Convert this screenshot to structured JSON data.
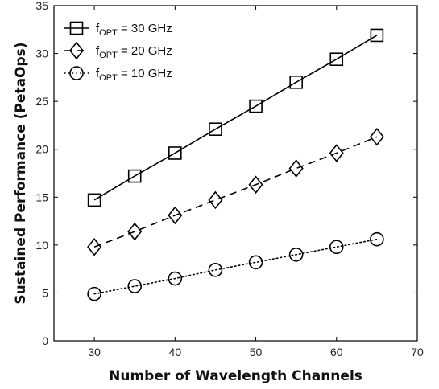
{
  "chart_data": {
    "type": "line",
    "xlabel": "Number of Wavelength Channels",
    "ylabel": "Sustained Performance (PetaOps)",
    "xlim": [
      25,
      70
    ],
    "ylim": [
      0,
      35
    ],
    "xticks": [
      "30",
      "40",
      "50",
      "60",
      "70"
    ],
    "yticks": [
      "0",
      "5",
      "10",
      "15",
      "20",
      "25",
      "30",
      "35"
    ],
    "grid": false,
    "legend_position": "top-left",
    "x": [
      30,
      35,
      40,
      45,
      50,
      55,
      60,
      65
    ],
    "series": [
      {
        "name_main": "f",
        "name_sub": "OPT",
        "name_rest": " = 30 GHz",
        "values": [
          14.7,
          17.2,
          19.6,
          22.1,
          24.5,
          27.0,
          29.4,
          31.9
        ],
        "marker": "square",
        "line": "solid",
        "color": "#000000"
      },
      {
        "name_main": "f",
        "name_sub": "OPT",
        "name_rest": " = 20 GHz",
        "values": [
          9.8,
          11.4,
          13.1,
          14.7,
          16.3,
          18.0,
          19.6,
          21.3
        ],
        "marker": "diamond",
        "line": "dashed",
        "color": "#000000"
      },
      {
        "name_main": "f",
        "name_sub": "OPT",
        "name_rest": " = 10 GHz",
        "values": [
          4.9,
          5.7,
          6.5,
          7.4,
          8.2,
          9.0,
          9.8,
          10.6
        ],
        "marker": "circle",
        "line": "dotted",
        "color": "#000000"
      }
    ]
  }
}
